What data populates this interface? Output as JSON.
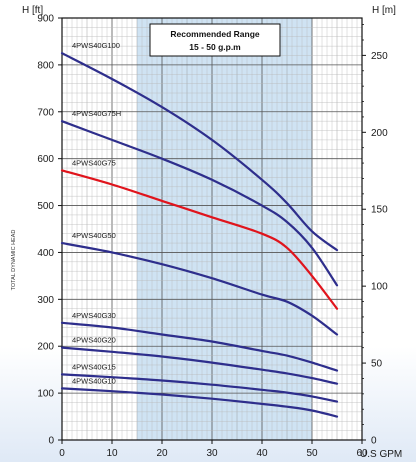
{
  "chart_data": {
    "type": "line",
    "y_left_label": "H [ft]",
    "y_right_label": "H [m]",
    "x_unit_label": "U.S GPM",
    "y_axis_title": "TOTAL DYNAMIC HEAD",
    "xlim": [
      0,
      60
    ],
    "ylim_left": [
      0,
      900
    ],
    "ylim_right": [
      0,
      274.3
    ],
    "x_ticks": [
      0,
      10,
      20,
      30,
      40,
      50,
      60
    ],
    "y_left_ticks": [
      0,
      100,
      200,
      300,
      400,
      500,
      600,
      700,
      800,
      900
    ],
    "y_right_ticks": [
      0,
      50,
      100,
      150,
      200,
      250
    ],
    "grid": true,
    "recommended_range": {
      "from": 15,
      "to": 50,
      "title": "Recommended Range",
      "subtitle": "15 - 50 g.p.m"
    },
    "series": [
      {
        "name": "4PWS40G100",
        "color": "#2e2e8c",
        "x": [
          0,
          10,
          20,
          30,
          40,
          45,
          50,
          55
        ],
        "y": [
          825,
          770,
          710,
          640,
          555,
          505,
          445,
          405
        ]
      },
      {
        "name": "4PWS40G75H",
        "color": "#2e2e8c",
        "x": [
          0,
          10,
          20,
          30,
          40,
          45,
          50,
          55
        ],
        "y": [
          680,
          640,
          600,
          555,
          500,
          465,
          410,
          330
        ]
      },
      {
        "name": "4PWS40G75",
        "color": "#e0141c",
        "x": [
          0,
          10,
          20,
          30,
          40,
          45,
          50,
          55
        ],
        "y": [
          575,
          545,
          510,
          475,
          440,
          410,
          350,
          280
        ]
      },
      {
        "name": "4PWS40G50",
        "color": "#2e2e8c",
        "x": [
          0,
          10,
          20,
          30,
          40,
          45,
          50,
          55
        ],
        "y": [
          420,
          400,
          375,
          345,
          310,
          295,
          265,
          225
        ]
      },
      {
        "name": "4PWS40G30",
        "color": "#2e2e8c",
        "x": [
          0,
          10,
          20,
          30,
          40,
          45,
          50,
          55
        ],
        "y": [
          250,
          240,
          225,
          210,
          190,
          180,
          165,
          148
        ]
      },
      {
        "name": "4PWS40G20",
        "color": "#2e2e8c",
        "x": [
          0,
          10,
          20,
          30,
          40,
          45,
          50,
          55
        ],
        "y": [
          197,
          188,
          178,
          165,
          150,
          142,
          132,
          120
        ]
      },
      {
        "name": "4PWS40G15",
        "color": "#2e2e8c",
        "x": [
          0,
          10,
          20,
          30,
          40,
          45,
          50,
          55
        ],
        "y": [
          140,
          134,
          127,
          118,
          107,
          101,
          93,
          82
        ]
      },
      {
        "name": "4PWS40G10",
        "color": "#2e2e8c",
        "x": [
          0,
          10,
          20,
          30,
          40,
          45,
          50,
          55
        ],
        "y": [
          110,
          104,
          97,
          88,
          77,
          71,
          63,
          50
        ]
      }
    ]
  }
}
